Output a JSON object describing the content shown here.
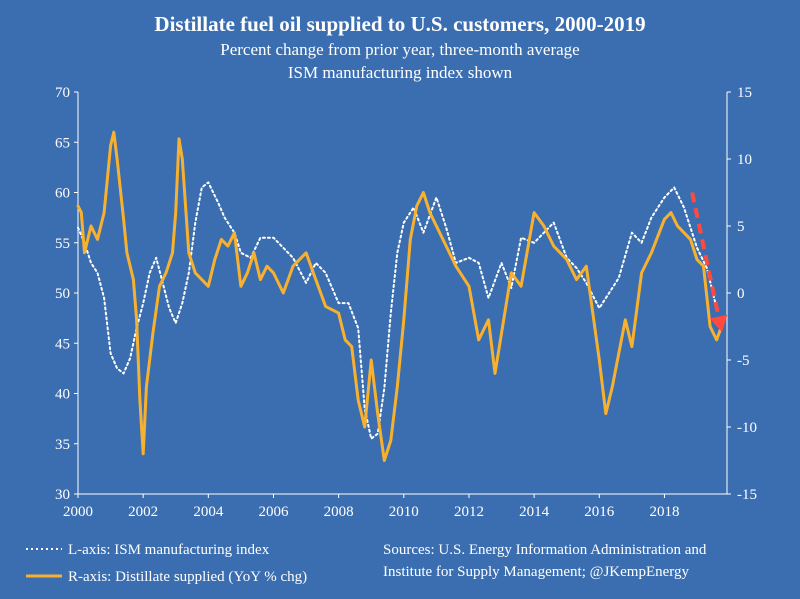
{
  "chart_data": {
    "type": "line",
    "title": "Distillate fuel oil supplied to U.S. customers, 2000-2019",
    "subtitle": [
      "Percent change from prior year, three-month average",
      "ISM manufacturing index shown"
    ],
    "x_ticks": [
      "2000",
      "2002",
      "2004",
      "2006",
      "2008",
      "2010",
      "2012",
      "2014",
      "2016",
      "2018"
    ],
    "xlim": [
      2000,
      2019.92
    ],
    "y_left": {
      "ticks": [
        "70",
        "65",
        "60",
        "55",
        "50",
        "45",
        "40",
        "35",
        "30"
      ],
      "ylim": [
        30,
        70
      ]
    },
    "y_right": {
      "ticks": [
        "15",
        "10",
        "5",
        "0",
        "-5",
        "-10",
        "-15"
      ],
      "ylim": [
        -15,
        15
      ]
    },
    "legend": [
      {
        "label": "L-axis: ISM manufacturing index",
        "style": "dotted",
        "color": "#ffffff"
      },
      {
        "label": "R-axis: Distillate supplied (YoY % chg)",
        "style": "solid",
        "color": "#f7b12e"
      }
    ],
    "sources": [
      "Sources: U.S. Energy Information Administration and",
      "Institute for Supply Management; @JKempEnergy"
    ],
    "series": [
      {
        "name": "L-axis: ISM manufacturing index",
        "axis": "left",
        "color": "#ffffff",
        "x": [
          2000.0,
          2000.2,
          2000.4,
          2000.6,
          2000.8,
          2001.0,
          2001.2,
          2001.4,
          2001.6,
          2001.8,
          2002.0,
          2002.2,
          2002.4,
          2002.6,
          2002.8,
          2003.0,
          2003.2,
          2003.4,
          2003.6,
          2003.8,
          2004.0,
          2004.3,
          2004.5,
          2004.8,
          2005.0,
          2005.3,
          2005.6,
          2006.0,
          2006.3,
          2006.6,
          2007.0,
          2007.3,
          2007.6,
          2008.0,
          2008.3,
          2008.6,
          2008.8,
          2009.0,
          2009.2,
          2009.4,
          2009.6,
          2009.8,
          2010.0,
          2010.3,
          2010.6,
          2011.0,
          2011.3,
          2011.6,
          2012.0,
          2012.3,
          2012.6,
          2013.0,
          2013.3,
          2013.6,
          2014.0,
          2014.3,
          2014.6,
          2015.0,
          2015.3,
          2015.6,
          2016.0,
          2016.3,
          2016.6,
          2017.0,
          2017.3,
          2017.6,
          2018.0,
          2018.3,
          2018.6,
          2019.0,
          2019.3,
          2019.6
        ],
        "y": [
          56.5,
          55.0,
          53.0,
          52.0,
          49.5,
          44.0,
          42.5,
          42.0,
          43.5,
          46.5,
          49.0,
          52.0,
          53.5,
          51.0,
          48.5,
          47.0,
          49.0,
          52.0,
          57.0,
          60.5,
          61.0,
          59.0,
          57.5,
          56.0,
          54.0,
          53.5,
          55.5,
          55.5,
          54.5,
          53.5,
          51.0,
          53.0,
          52.0,
          49.0,
          49.0,
          46.5,
          38.5,
          35.5,
          36.0,
          40.5,
          48.0,
          54.0,
          57.0,
          58.5,
          56.0,
          59.5,
          56.5,
          53.0,
          53.5,
          53.0,
          49.5,
          53.0,
          50.5,
          55.5,
          55.0,
          56.0,
          57.0,
          53.5,
          52.5,
          51.0,
          48.5,
          50.0,
          51.5,
          56.0,
          55.0,
          57.5,
          59.5,
          60.5,
          58.5,
          54.5,
          52.5,
          48.5
        ]
      },
      {
        "name": "R-axis: Distillate supplied (YoY % chg)",
        "axis": "right",
        "color": "#f7b12e",
        "x": [
          2000.0,
          2000.1,
          2000.2,
          2000.4,
          2000.6,
          2000.8,
          2001.0,
          2001.1,
          2001.2,
          2001.4,
          2001.5,
          2001.7,
          2001.8,
          2001.9,
          2002.0,
          2002.1,
          2002.3,
          2002.5,
          2002.7,
          2002.9,
          2003.0,
          2003.1,
          2003.2,
          2003.4,
          2003.6,
          2003.8,
          2004.0,
          2004.2,
          2004.4,
          2004.6,
          2004.8,
          2005.0,
          2005.2,
          2005.4,
          2005.6,
          2005.8,
          2006.0,
          2006.3,
          2006.6,
          2007.0,
          2007.3,
          2007.6,
          2008.0,
          2008.2,
          2008.4,
          2008.6,
          2008.8,
          2009.0,
          2009.2,
          2009.4,
          2009.6,
          2009.8,
          2010.0,
          2010.2,
          2010.4,
          2010.6,
          2010.8,
          2011.0,
          2011.3,
          2011.6,
          2012.0,
          2012.3,
          2012.6,
          2012.8,
          2013.0,
          2013.3,
          2013.6,
          2014.0,
          2014.3,
          2014.6,
          2015.0,
          2015.3,
          2015.6,
          2015.8,
          2016.0,
          2016.2,
          2016.4,
          2016.6,
          2016.8,
          2017.0,
          2017.3,
          2017.6,
          2018.0,
          2018.2,
          2018.4,
          2018.6,
          2018.8,
          2019.0,
          2019.2,
          2019.4,
          2019.6,
          2019.75
        ],
        "y": [
          6.5,
          6.0,
          3.0,
          5.0,
          4.0,
          6.0,
          11.0,
          12.0,
          10.0,
          5.5,
          3.0,
          1.0,
          -2.0,
          -8.0,
          -12.0,
          -7.0,
          -3.0,
          0.5,
          1.5,
          3.0,
          6.0,
          11.5,
          10.0,
          3.0,
          1.5,
          1.0,
          0.5,
          2.5,
          4.0,
          3.5,
          4.5,
          0.5,
          1.5,
          3.0,
          1.0,
          2.0,
          1.5,
          0.0,
          2.0,
          3.0,
          1.0,
          -1.0,
          -1.5,
          -3.5,
          -4.0,
          -8.0,
          -10.0,
          -5.0,
          -9.0,
          -12.5,
          -11.0,
          -7.0,
          -2.0,
          4.0,
          6.5,
          7.5,
          6.0,
          5.0,
          3.5,
          2.0,
          0.5,
          -3.5,
          -2.0,
          -6.0,
          -3.0,
          1.5,
          0.5,
          6.0,
          5.0,
          3.5,
          2.5,
          1.0,
          2.0,
          -1.5,
          -5.0,
          -9.0,
          -7.0,
          -4.5,
          -2.0,
          -4.0,
          1.5,
          3.0,
          5.5,
          6.0,
          5.0,
          4.5,
          4.0,
          2.5,
          2.0,
          -2.5,
          -3.5,
          -2.5
        ]
      }
    ],
    "annotation": {
      "type": "arrow",
      "style": "dashed",
      "color": "#ff4a3d",
      "direction": "down"
    }
  }
}
